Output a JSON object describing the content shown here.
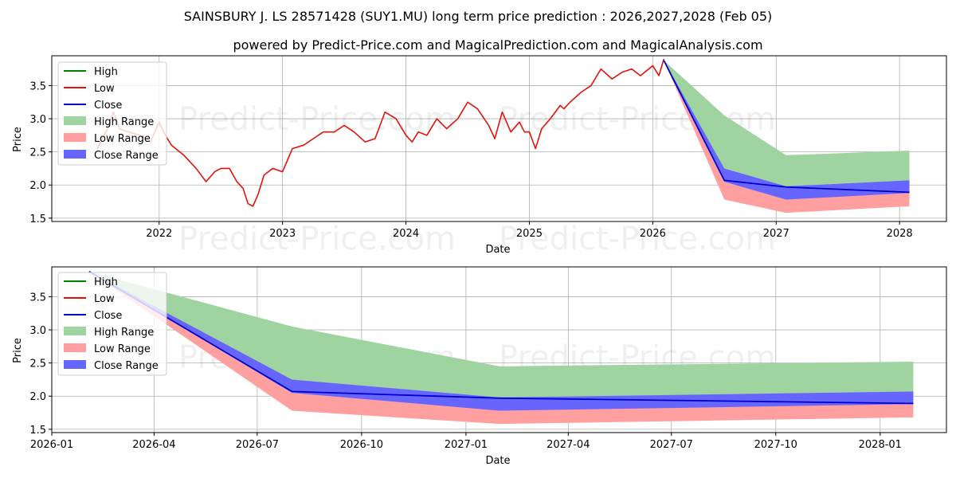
{
  "title": "SAINSBURY J. LS 28571428 (SUY1.MU) long term price prediction : 2026,2027,2028 (Feb 05)",
  "subtitle": "powered by Predict-Price.com and MagicalPrediction.com and MagicalAnalysis.com",
  "watermark": "Predict-Price.com",
  "legend": {
    "high": "High",
    "low": "Low",
    "close": "Close",
    "high_range": "High Range",
    "low_range": "Low Range",
    "close_range": "Close Range"
  },
  "colors": {
    "high": "#008000",
    "low": "#e0140c",
    "close": "#0000cc",
    "high_range": "#9fd39f",
    "low_range": "#ff9f9f",
    "close_range": "#6666ff",
    "grid": "#b0b0b0"
  },
  "chart_data": [
    {
      "type": "line",
      "panel": "top",
      "xlabel": "Date",
      "ylabel": "Price",
      "xlim": [
        2021.13,
        2028.38
      ],
      "ylim": [
        1.45,
        3.95
      ],
      "xticks": [
        2022,
        2023,
        2024,
        2025,
        2026,
        2027,
        2028
      ],
      "xtick_labels": [
        "2022",
        "2023",
        "2024",
        "2025",
        "2026",
        "2027",
        "2028"
      ],
      "yticks": [
        1.5,
        2.0,
        2.5,
        3.0,
        3.5
      ],
      "ytick_labels": [
        "1.5",
        "2.0",
        "2.5",
        "3.0",
        "3.5"
      ],
      "legend_position": "upper-left",
      "history_low": {
        "name": "Low",
        "x": [
          2021.5,
          2021.58,
          2021.63,
          2021.68,
          2021.75,
          2021.85,
          2021.93,
          2022.0,
          2022.05,
          2022.1,
          2022.2,
          2022.3,
          2022.38,
          2022.45,
          2022.5,
          2022.57,
          2022.63,
          2022.68,
          2022.72,
          2022.76,
          2022.8,
          2022.85,
          2022.92,
          2023.0,
          2023.08,
          2023.17,
          2023.25,
          2023.33,
          2023.42,
          2023.5,
          2023.58,
          2023.67,
          2023.75,
          2023.83,
          2023.92,
          2024.0,
          2024.05,
          2024.1,
          2024.17,
          2024.25,
          2024.33,
          2024.42,
          2024.5,
          2024.58,
          2024.67,
          2024.72,
          2024.78,
          2024.85,
          2024.92,
          2024.96,
          2025.0,
          2025.05,
          2025.1,
          2025.17,
          2025.25,
          2025.28,
          2025.33,
          2025.42,
          2025.5,
          2025.58,
          2025.67,
          2025.75,
          2025.83,
          2025.9,
          2026.0,
          2026.05,
          2026.09
        ],
        "values": [
          2.55,
          2.85,
          3.1,
          2.85,
          2.8,
          2.75,
          2.65,
          2.95,
          2.75,
          2.6,
          2.45,
          2.25,
          2.05,
          2.2,
          2.25,
          2.25,
          2.05,
          1.95,
          1.72,
          1.68,
          1.85,
          2.15,
          2.25,
          2.2,
          2.55,
          2.6,
          2.7,
          2.8,
          2.8,
          2.9,
          2.8,
          2.65,
          2.7,
          3.1,
          3.0,
          2.75,
          2.65,
          2.8,
          2.75,
          3.0,
          2.85,
          3.0,
          3.25,
          3.15,
          2.9,
          2.7,
          3.1,
          2.8,
          2.95,
          2.8,
          2.8,
          2.55,
          2.85,
          3.0,
          3.2,
          3.15,
          3.25,
          3.4,
          3.5,
          3.75,
          3.6,
          3.7,
          3.75,
          3.65,
          3.8,
          3.65,
          3.9
        ]
      },
      "forecast": {
        "x": [
          2026.09,
          2026.58,
          2027.08,
          2028.08
        ],
        "high": [
          3.88,
          3.05,
          2.45,
          2.52
        ],
        "low": [
          3.88,
          1.78,
          1.58,
          1.68
        ],
        "close": [
          3.88,
          2.07,
          1.97,
          1.89
        ],
        "close_range_upper": [
          3.88,
          2.25,
          1.98,
          2.07
        ],
        "close_range_lower": [
          3.88,
          2.05,
          1.78,
          1.88
        ]
      }
    },
    {
      "type": "line",
      "panel": "bottom",
      "xlabel": "Date",
      "ylabel": "Price",
      "xlim": [
        2026.0,
        2028.16
      ],
      "ylim": [
        1.45,
        3.95
      ],
      "xticks": [
        2026.0,
        2026.247,
        2026.496,
        2026.748,
        2027.0,
        2027.247,
        2027.496,
        2027.748,
        2028.0
      ],
      "xtick_labels": [
        "2026-01",
        "2026-04",
        "2026-07",
        "2026-10",
        "2027-01",
        "2027-04",
        "2027-07",
        "2027-10",
        "2028-01"
      ],
      "yticks": [
        1.5,
        2.0,
        2.5,
        3.0,
        3.5
      ],
      "ytick_labels": [
        "1.5",
        "2.0",
        "2.5",
        "3.0",
        "3.5"
      ],
      "legend_position": "upper-left",
      "forecast": {
        "x": [
          2026.09,
          2026.58,
          2027.08,
          2028.08
        ],
        "high": [
          3.88,
          3.05,
          2.45,
          2.52
        ],
        "low": [
          3.88,
          1.78,
          1.58,
          1.68
        ],
        "close": [
          3.88,
          2.07,
          1.97,
          1.89
        ],
        "close_range_upper": [
          3.88,
          2.25,
          1.98,
          2.07
        ],
        "close_range_lower": [
          3.88,
          2.05,
          1.78,
          1.88
        ]
      }
    }
  ]
}
